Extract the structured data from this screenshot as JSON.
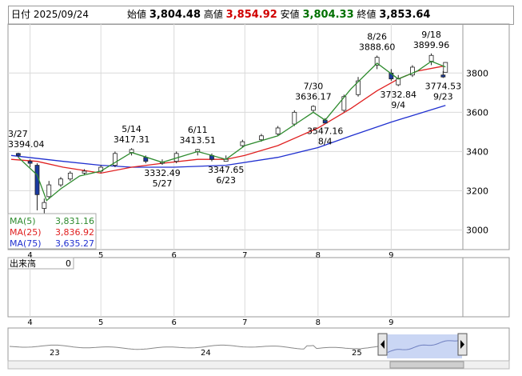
{
  "header": {
    "date_label": "日付",
    "date": "2025/09/24",
    "open_label": "始値",
    "open": "3,804.48",
    "high_label": "高値",
    "high": "3,854.92",
    "low_label": "安値",
    "low": "3,804.33",
    "close_label": "終値",
    "close": "3,853.64"
  },
  "legend": {
    "ma5_label": "MA(5)",
    "ma5_value": "3,831.16",
    "ma25_label": "MA(25)",
    "ma25_value": "3,836.92",
    "ma75_label": "MA(75)",
    "ma75_value": "3,635.27"
  },
  "volume_panel": {
    "label": "出来高",
    "value": "0"
  },
  "navigator": {
    "year_labels": [
      "23",
      "24",
      "25"
    ]
  },
  "colors": {
    "ma5": "#2e8b2e",
    "ma25": "#e02020",
    "ma75": "#2030d0",
    "up": "#d00000",
    "down": "#007000",
    "candle_body": "#1a3aa0"
  },
  "chart_data": {
    "type": "line",
    "title": "",
    "xlabel": "",
    "ylabel": "",
    "ylim": [
      2900,
      4050
    ],
    "y_ticks": [
      3000,
      3200,
      3400,
      3600,
      3800
    ],
    "x_ticks": [
      "4",
      "5",
      "6",
      "7",
      "8",
      "9"
    ],
    "x_tick_dates": [
      "2025-04-01",
      "2025-05-01",
      "2025-06-01",
      "2025-07-01",
      "2025-08-01",
      "2025-09-01"
    ],
    "x_range": [
      "2025-03-24",
      "2025-09-30"
    ],
    "series": [
      {
        "name": "MA(5)",
        "x": [
          "2025-03-27",
          "2025-04-04",
          "2025-04-08",
          "2025-04-14",
          "2025-04-22",
          "2025-05-01",
          "2025-05-14",
          "2025-05-27",
          "2025-06-11",
          "2025-06-23",
          "2025-07-01",
          "2025-07-15",
          "2025-07-30",
          "2025-08-04",
          "2025-08-15",
          "2025-08-26",
          "2025-09-04",
          "2025-09-12",
          "2025-09-18",
          "2025-09-24"
        ],
        "values": [
          3370,
          3280,
          3150,
          3210,
          3275,
          3300,
          3395,
          3345,
          3400,
          3360,
          3430,
          3480,
          3600,
          3560,
          3720,
          3850,
          3770,
          3810,
          3860,
          3831
        ]
      },
      {
        "name": "MA(25)",
        "x": [
          "2025-03-24",
          "2025-04-04",
          "2025-04-15",
          "2025-05-01",
          "2025-05-14",
          "2025-05-27",
          "2025-06-11",
          "2025-06-23",
          "2025-07-01",
          "2025-07-15",
          "2025-08-01",
          "2025-08-15",
          "2025-08-26",
          "2025-09-04",
          "2025-09-12",
          "2025-09-24"
        ],
        "values": [
          3360,
          3350,
          3320,
          3290,
          3320,
          3340,
          3360,
          3360,
          3380,
          3430,
          3520,
          3620,
          3710,
          3770,
          3810,
          3837
        ]
      },
      {
        "name": "MA(75)",
        "x": [
          "2025-03-24",
          "2025-04-15",
          "2025-05-01",
          "2025-05-14",
          "2025-06-01",
          "2025-06-23",
          "2025-07-15",
          "2025-08-01",
          "2025-08-15",
          "2025-09-01",
          "2025-09-24"
        ],
        "values": [
          3380,
          3350,
          3330,
          3320,
          3320,
          3330,
          3370,
          3420,
          3480,
          3550,
          3635
        ]
      }
    ],
    "candles_sampled": {
      "x": [
        "2025-03-27",
        "2025-04-01",
        "2025-04-04",
        "2025-04-07",
        "2025-04-09",
        "2025-04-14",
        "2025-04-18",
        "2025-04-24",
        "2025-05-01",
        "2025-05-07",
        "2025-05-14",
        "2025-05-20",
        "2025-05-27",
        "2025-06-02",
        "2025-06-11",
        "2025-06-17",
        "2025-06-23",
        "2025-06-30",
        "2025-07-08",
        "2025-07-15",
        "2025-07-22",
        "2025-07-30",
        "2025-08-04",
        "2025-08-12",
        "2025-08-18",
        "2025-08-26",
        "2025-09-01",
        "2025-09-04",
        "2025-09-10",
        "2025-09-18",
        "2025-09-23",
        "2025-09-24"
      ],
      "open": [
        3390,
        3350,
        3330,
        3110,
        3170,
        3230,
        3260,
        3290,
        3300,
        3330,
        3395,
        3370,
        3340,
        3350,
        3400,
        3380,
        3350,
        3430,
        3460,
        3490,
        3540,
        3610,
        3560,
        3610,
        3690,
        3840,
        3800,
        3740,
        3790,
        3860,
        3790,
        3804
      ],
      "close": [
        3380,
        3340,
        3180,
        3140,
        3230,
        3260,
        3290,
        3300,
        3320,
        3390,
        3410,
        3350,
        3345,
        3390,
        3410,
        3360,
        3360,
        3450,
        3480,
        3520,
        3600,
        3630,
        3545,
        3680,
        3760,
        3880,
        3770,
        3770,
        3830,
        3890,
        3780,
        3854
      ],
      "high": [
        3394,
        3360,
        3340,
        3160,
        3250,
        3270,
        3300,
        3310,
        3330,
        3400,
        3417,
        3380,
        3360,
        3400,
        3414,
        3390,
        3380,
        3460,
        3490,
        3530,
        3610,
        3636,
        3570,
        3690,
        3780,
        3889,
        3820,
        3790,
        3840,
        3900,
        3810,
        3855
      ],
      "low": [
        3370,
        3320,
        3100,
        3050,
        3160,
        3220,
        3250,
        3280,
        3290,
        3320,
        3380,
        3340,
        3332,
        3340,
        3380,
        3350,
        3348,
        3420,
        3450,
        3480,
        3530,
        3600,
        3547,
        3600,
        3680,
        3820,
        3760,
        3733,
        3780,
        3840,
        3775,
        3804
      ]
    },
    "annotations": [
      {
        "date": "3/27",
        "value": "3394.04",
        "x": "2025-03-27",
        "y": 3394.04,
        "pos": "above"
      },
      {
        "date": "5/14",
        "value": "3417.31",
        "x": "2025-05-14",
        "y": 3417.31,
        "pos": "above"
      },
      {
        "date": "5/27",
        "value": "3332.49",
        "x": "2025-05-27",
        "y": 3332.49,
        "pos": "below"
      },
      {
        "date": "6/11",
        "value": "3413.51",
        "x": "2025-06-11",
        "y": 3413.51,
        "pos": "above"
      },
      {
        "date": "6/23",
        "value": "3347.65",
        "x": "2025-06-23",
        "y": 3347.65,
        "pos": "below"
      },
      {
        "date": "7/30",
        "value": "3636.17",
        "x": "2025-07-30",
        "y": 3636.17,
        "pos": "above"
      },
      {
        "date": "8/4",
        "value": "3547.16",
        "x": "2025-08-04",
        "y": 3547.16,
        "pos": "below"
      },
      {
        "date": "8/26",
        "value": "3888.60",
        "x": "2025-08-26",
        "y": 3888.6,
        "pos": "above"
      },
      {
        "date": "9/4",
        "value": "3732.84",
        "x": "2025-09-04",
        "y": 3732.84,
        "pos": "below"
      },
      {
        "date": "9/18",
        "value": "3899.96",
        "x": "2025-09-18",
        "y": 3899.96,
        "pos": "above"
      },
      {
        "date": "9/23",
        "value": "3774.53",
        "x": "2025-09-23",
        "y": 3774.53,
        "pos": "below"
      }
    ]
  }
}
